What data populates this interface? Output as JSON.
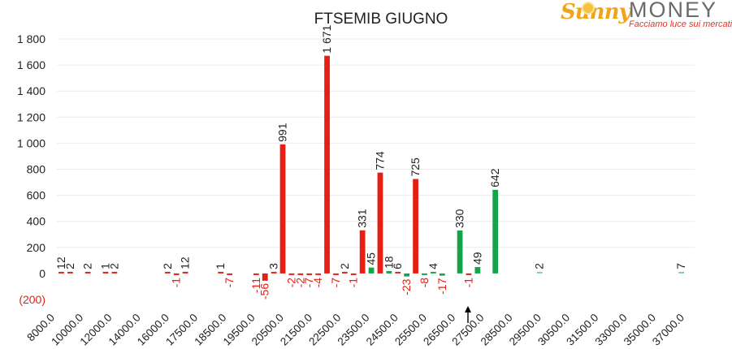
{
  "colors": {
    "red": "#e61e14",
    "green": "#16a34a",
    "teal": "#7ec9c0",
    "text": "#404040",
    "negative_label": "#e61e14"
  },
  "logo": {
    "brand_a": "Sunny",
    "brand_b": "MONEY",
    "tagline": "Facciamo luce sui mercati"
  },
  "chart_data": {
    "type": "bar",
    "title": "FTSEMIB GIUGNO",
    "ylim": [
      -200,
      1800
    ],
    "y_ticks": [
      "1 800",
      "1 600",
      "1 400",
      "1 200",
      "1 000",
      "800",
      "600",
      "400",
      "200",
      "0",
      "(200)"
    ],
    "x_tick_labels": [
      "8000.0",
      "10000.0",
      "12000.0",
      "14000.0",
      "16000.0",
      "17500.0",
      "18500.0",
      "19500.0",
      "20500.0",
      "21500.0",
      "22500.0",
      "23500.0",
      "24500.0",
      "25500.0",
      "26500.0",
      "27500.0",
      "28500.0",
      "29500.0",
      "30500.0",
      "31500.0",
      "33000.0",
      "35000.0",
      "37000.0"
    ],
    "grid": true,
    "bars": [
      {
        "slot": 0,
        "value": 12,
        "label": "12",
        "color": "red"
      },
      {
        "slot": 1,
        "value": 2,
        "label": "2",
        "color": "red"
      },
      {
        "slot": 3,
        "value": 2,
        "label": "2",
        "color": "red"
      },
      {
        "slot": 5,
        "value": 1,
        "label": "1",
        "color": "red"
      },
      {
        "slot": 6,
        "value": 2,
        "label": "2",
        "color": "red"
      },
      {
        "slot": 12,
        "value": 2,
        "label": "2",
        "color": "red"
      },
      {
        "slot": 13,
        "value": -1,
        "label": "-1",
        "color": "red"
      },
      {
        "slot": 14,
        "value": 12,
        "label": "12",
        "color": "red"
      },
      {
        "slot": 18,
        "value": 1,
        "label": "1",
        "color": "red"
      },
      {
        "slot": 19,
        "value": -7,
        "label": "-7",
        "color": "red"
      },
      {
        "slot": 22,
        "value": -11,
        "label": "-11",
        "color": "red"
      },
      {
        "slot": 23,
        "value": -56,
        "label": "-56",
        "color": "red"
      },
      {
        "slot": 24,
        "value": 3,
        "label": "3",
        "color": "red"
      },
      {
        "slot": 25,
        "value": 991,
        "label": "991",
        "color": "red"
      },
      {
        "slot": 26,
        "value": -2,
        "label": "-2",
        "color": "red"
      },
      {
        "slot": 27,
        "value": -2,
        "label": "-2",
        "color": "red"
      },
      {
        "slot": 28,
        "value": -7,
        "label": "-7",
        "color": "red"
      },
      {
        "slot": 29,
        "value": -4,
        "label": "-4",
        "color": "red"
      },
      {
        "slot": 30,
        "value": 1671,
        "label": "1 671",
        "color": "red"
      },
      {
        "slot": 31,
        "value": -7,
        "label": "-7",
        "color": "red"
      },
      {
        "slot": 32,
        "value": 2,
        "label": "2",
        "color": "red"
      },
      {
        "slot": 33,
        "value": -1,
        "label": "-1",
        "color": "red"
      },
      {
        "slot": 34,
        "value": 331,
        "label": "331",
        "color": "red"
      },
      {
        "slot": 35,
        "value": 45,
        "label": "45",
        "color": "green"
      },
      {
        "slot": 36,
        "value": 774,
        "label": "774",
        "color": "red"
      },
      {
        "slot": 37,
        "value": 18,
        "label": "18",
        "color": "green"
      },
      {
        "slot": 38,
        "value": 6,
        "label": "6",
        "color": "red"
      },
      {
        "slot": 39,
        "value": -23,
        "label": "-23",
        "color": "green"
      },
      {
        "slot": 40,
        "value": 725,
        "label": "725",
        "color": "red"
      },
      {
        "slot": 41,
        "value": -8,
        "label": "-8",
        "color": "green"
      },
      {
        "slot": 42,
        "value": 4,
        "label": "4",
        "color": "green"
      },
      {
        "slot": 43,
        "value": -17,
        "label": "-17",
        "color": "green"
      },
      {
        "slot": 45,
        "value": 330,
        "label": "330",
        "color": "green"
      },
      {
        "slot": 46,
        "value": -1,
        "label": "-1",
        "color": "red"
      },
      {
        "slot": 47,
        "value": 49,
        "label": "49",
        "color": "green"
      },
      {
        "slot": 49,
        "value": 642,
        "label": "642",
        "color": "green"
      },
      {
        "slot": 54,
        "value": 2,
        "label": "2",
        "color": "teal"
      },
      {
        "slot": 70,
        "value": 7,
        "label": "7",
        "color": "teal"
      }
    ]
  }
}
